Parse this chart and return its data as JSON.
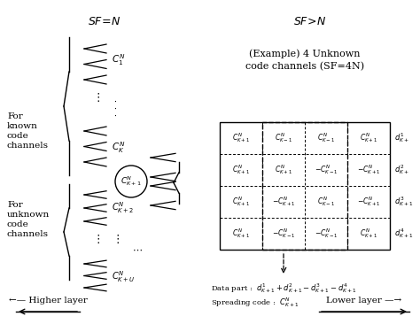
{
  "title_left": "SF=N",
  "title_right": "SF>N",
  "fig_width": 4.74,
  "fig_height": 3.66,
  "dpi": 100,
  "bg_color": "#ffffff",
  "label_for_known": "For\nknown\ncode\nchannels",
  "label_for_unknown": "For\nunknown\ncode\nchannels",
  "example_text": "(Example) 4 Unknown\ncode channels (SF=4N)",
  "data_part_text": "Data part :  ",
  "spreading_code_text": "Spreading code :  ",
  "higher_layer": "←— Higher layer",
  "lower_layer": "Lower layer —→",
  "grid_cells": [
    [
      "C^N_{K+1}",
      "C^N_{K-1}",
      "C^N_{K-1}",
      "C^N_{K+1}"
    ],
    [
      "C^N_{K+1}",
      "C^N_{K+1}",
      "-C^N_{K-1}",
      "-C^N_{K+1}"
    ],
    [
      "C^N_{K+1}",
      "-C^N_{K+1}",
      "C^N_{K-1}",
      "-C^N_{K+1}"
    ],
    [
      "C^N_{K+1}",
      "-C^N_{K-1}",
      "-C^N_{K-1}",
      "C^N_{K+1}"
    ]
  ],
  "d_labels": [
    "d^1_{K+}",
    "d^2_{K+}",
    "d^3_{K+1}",
    "d^4_{K+1}"
  ]
}
